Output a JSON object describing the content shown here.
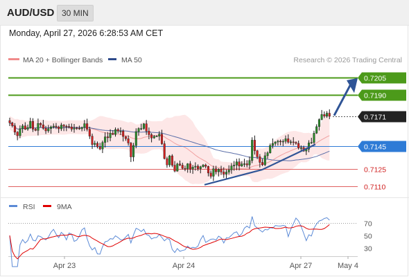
{
  "header": {
    "symbol": "AUD/USD",
    "timeframe": "30 MIN",
    "datetime": "Monday, April 27, 2026 6:28:53 AM CET"
  },
  "legend": {
    "bollinger": {
      "label": "MA 20 + Bollinger Bands",
      "color": "#f08a8a"
    },
    "ma50": {
      "label": "MA 50",
      "color": "#2d4a8a"
    }
  },
  "copyright": "Research © 2026 Trading Central",
  "colors": {
    "up": "#2a8a2a",
    "down": "#d02020",
    "candle": "#1a1a1a",
    "resistance": "#4c9a1a",
    "pivot": "#2e7bd6",
    "support": "#e06060",
    "arrow": "#2f5496",
    "rsi": "#5b8ad6",
    "rsi_ma": "#e00000"
  },
  "chart_data": [
    {
      "type": "candlestick",
      "ylim": [
        0.7104,
        0.7214
      ],
      "x_ticks": [
        "Apr 23",
        "Apr 24",
        "Apr 27",
        "May 4"
      ],
      "levels": [
        {
          "label": "0.7205",
          "value": 0.7205,
          "kind": "resistance"
        },
        {
          "label": "0.7190",
          "value": 0.719,
          "kind": "resistance"
        },
        {
          "label": "0.7171",
          "value": 0.7171,
          "kind": "last"
        },
        {
          "label": "0.7145",
          "value": 0.7145,
          "kind": "pivot"
        },
        {
          "label": "0.7125",
          "value": 0.7125,
          "kind": "support"
        },
        {
          "label": "0.7110",
          "value": 0.711,
          "kind": "support"
        }
      ],
      "close": [
        0.71654,
        0.71629,
        0.71573,
        0.71542,
        0.71603,
        0.71628,
        0.71599,
        0.71614,
        0.71667,
        0.71599,
        0.71588,
        0.71649,
        0.71637,
        0.71606,
        0.71584,
        0.71604,
        0.71619,
        0.71626,
        0.71618,
        0.71602,
        0.71635,
        0.71624,
        0.71622,
        0.71619,
        0.71599,
        0.71609,
        0.71607,
        0.71602,
        0.71614,
        0.71647,
        0.71598,
        0.71538,
        0.71465,
        0.71476,
        0.71445,
        0.71426,
        0.71483,
        0.71532,
        0.71524,
        0.71563,
        0.71553,
        0.71596,
        0.71582,
        0.71582,
        0.71535,
        0.71516,
        0.71478,
        0.71357,
        0.71456,
        0.71578,
        0.71605,
        0.71605,
        0.71646,
        0.71582,
        0.71551,
        0.71522,
        0.71536,
        0.71538,
        0.71555,
        0.71472,
        0.71342,
        0.71287,
        0.71366,
        0.71284,
        0.71233,
        0.71295,
        0.71285,
        0.71257,
        0.71254,
        0.71297,
        0.71251,
        0.71268,
        0.71276,
        0.71254,
        0.71271,
        0.71286,
        0.71274,
        0.71216,
        0.71188,
        0.71253,
        0.71227,
        0.71248,
        0.71225,
        0.71206,
        0.71224,
        0.71243,
        0.71278,
        0.71285,
        0.71314,
        0.71277,
        0.71296,
        0.71297,
        0.71287,
        0.71325,
        0.71503,
        0.71411,
        0.71358,
        0.71309,
        0.71288,
        0.71367,
        0.71392,
        0.71456,
        0.71474,
        0.71487,
        0.71494,
        0.71492,
        0.71493,
        0.71515,
        0.71485,
        0.71488,
        0.71484,
        0.71475,
        0.71436,
        0.71436,
        0.71408,
        0.71424,
        0.71479,
        0.71483,
        0.71564,
        0.71621,
        0.71683,
        0.71727,
        0.71712,
        0.71738,
        0.71711
      ]
    },
    {
      "type": "line",
      "series": [
        {
          "name": "RSI"
        },
        {
          "name": "9MA"
        }
      ],
      "y_ticks": [
        70,
        50,
        30
      ],
      "ylim": [
        20,
        80
      ]
    }
  ]
}
